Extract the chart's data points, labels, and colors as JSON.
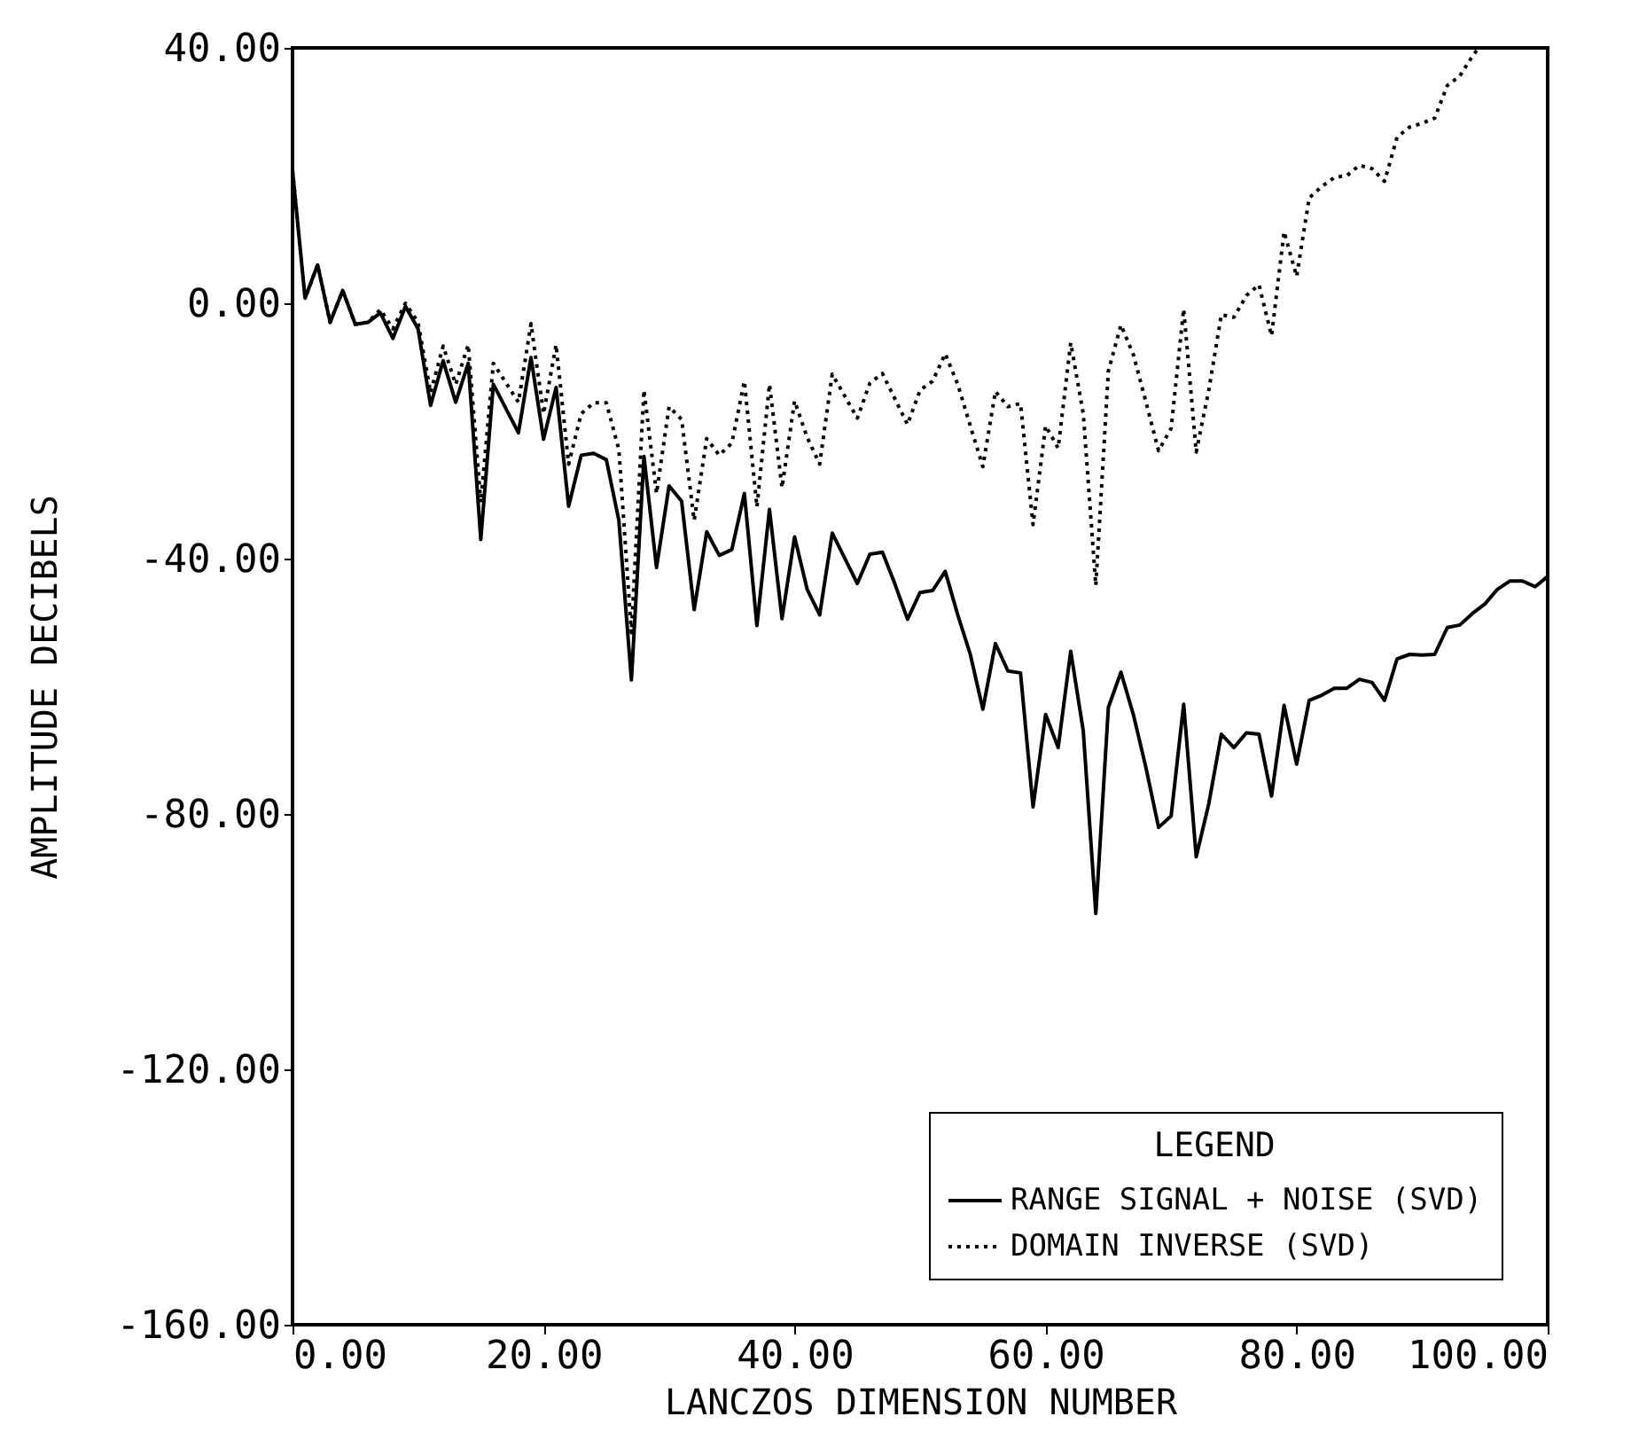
{
  "chart_data": {
    "type": "line",
    "xlabel": "LANCZOS DIMENSION NUMBER",
    "ylabel": "AMPLITUDE DECIBELS",
    "legend_title": "LEGEND",
    "legend": "bottom right",
    "grid": false,
    "xlim": [
      0,
      100
    ],
    "xticks": [
      {
        "value": 0,
        "label": "0.00"
      },
      {
        "value": 20,
        "label": "20.00"
      },
      {
        "value": 40,
        "label": "40.00"
      },
      {
        "value": 60,
        "label": "60.00"
      },
      {
        "value": 80,
        "label": "80.00"
      },
      {
        "value": 100,
        "label": "100.00"
      }
    ],
    "ylim": [
      -160,
      40
    ],
    "yticks": [
      {
        "value": -160,
        "label": "-160.00"
      },
      {
        "value": -120,
        "label": "-120.00"
      },
      {
        "value": -80,
        "label": "-80.00"
      },
      {
        "value": -40,
        "label": "-40.00"
      },
      {
        "value": 0,
        "label": "0.00"
      },
      {
        "value": 40,
        "label": "40.00"
      }
    ],
    "series": [
      {
        "name": "RANGE SIGNAL + NOISE (SVD)",
        "color": "#000000",
        "line_style": "solid",
        "x": [
          0,
          1,
          2,
          3,
          4,
          5,
          6,
          7,
          8,
          9,
          10,
          11,
          12,
          13,
          14,
          15,
          16,
          18,
          19,
          20,
          21,
          22,
          23,
          24,
          25,
          26,
          27,
          28,
          29,
          30,
          31,
          32,
          33,
          34,
          35,
          36,
          37,
          38,
          39,
          40,
          41,
          42,
          43,
          45,
          46,
          47,
          48,
          49,
          50,
          51,
          52,
          53,
          54,
          55,
          56,
          57,
          58,
          59,
          60,
          61,
          62,
          63,
          64,
          65,
          66,
          67,
          68,
          69,
          70,
          71,
          72,
          73,
          74,
          75,
          76,
          77,
          78,
          79,
          80,
          81,
          82,
          83,
          84,
          85,
          86,
          87,
          88,
          89,
          90,
          91,
          92,
          93,
          94,
          95,
          96,
          97,
          98,
          99,
          100
        ],
        "values": [
          20.8,
          0.8,
          6,
          -3,
          2,
          -3.3,
          -3,
          -1.5,
          -5.5,
          -0.5,
          -4,
          -16,
          -9,
          -15.5,
          -9.4,
          -37,
          -12.7,
          -20.3,
          -8.5,
          -21.3,
          -13.2,
          -31.8,
          -23.8,
          -23.5,
          -24.5,
          -34,
          -59,
          -24,
          -41.4,
          -28.6,
          -31,
          -48,
          -35.8,
          -39.5,
          -38.6,
          -29.8,
          -50.5,
          -32.3,
          -49.4,
          -36.6,
          -44.8,
          -48.8,
          -36,
          -43.9,
          -39.3,
          -39,
          -44,
          -49.5,
          -45.3,
          -45,
          -42,
          -48.8,
          -55,
          -63.6,
          -53.3,
          -57.6,
          -57.9,
          -78.9,
          -64.4,
          -69.6,
          -54.5,
          -67,
          -95.6,
          -63.3,
          -57.8,
          -64.5,
          -72.8,
          -82.1,
          -80.3,
          -62.8,
          -86.7,
          -78.4,
          -67.5,
          -69.6,
          -67.3,
          -67.5,
          -77.2,
          -63,
          -72.2,
          -62.2,
          -61.4,
          -60.3,
          -60.3,
          -58.9,
          -59.4,
          -62.2,
          -55.7,
          -55,
          -55.1,
          -55,
          -50.8,
          -50.4,
          -48.6,
          -47.1,
          -44.8,
          -43.5,
          -43.5,
          -44.4,
          -42.8
        ]
      },
      {
        "name": "DOMAIN INVERSE (SVD)",
        "color": "#000000",
        "line_style": "dotted",
        "x": [
          0,
          1,
          2,
          3,
          4,
          5,
          6,
          7,
          8,
          9,
          10,
          11,
          12,
          13,
          14,
          15,
          16,
          18,
          19,
          20,
          21,
          22,
          23,
          24,
          25,
          26,
          27,
          28,
          29,
          30,
          31,
          32,
          33,
          34,
          35,
          36,
          37,
          38,
          39,
          40,
          41,
          42,
          43,
          45,
          46,
          47,
          48,
          49,
          50,
          51,
          52,
          53,
          54,
          55,
          56,
          57,
          58,
          59,
          60,
          61,
          62,
          63,
          64,
          65,
          66,
          67,
          68,
          69,
          70,
          71,
          72,
          73,
          74,
          75,
          76,
          77,
          78,
          79,
          80,
          81,
          82,
          83,
          84,
          85,
          86,
          87,
          88,
          89,
          90,
          91,
          92,
          93,
          94,
          94.5
        ],
        "values": [
          20.8,
          0.8,
          6,
          -3,
          2,
          -3.3,
          -3,
          -1,
          -4,
          0,
          -3,
          -14,
          -6.7,
          -12.7,
          -6.5,
          -31.2,
          -9.4,
          -15.5,
          -3.2,
          -17.3,
          -6.5,
          -25.2,
          -17.3,
          -15.6,
          -15.6,
          -22.9,
          -51.6,
          -13.6,
          -29.8,
          -16.2,
          -18.2,
          -34,
          -21.2,
          -23.8,
          -21.9,
          -12.2,
          -31.9,
          -12.7,
          -28.9,
          -15.3,
          -21,
          -25.2,
          -11.1,
          -18,
          -12.5,
          -11,
          -15,
          -19,
          -13.6,
          -12.2,
          -7.9,
          -12.7,
          -19.2,
          -25.6,
          -13.8,
          -16.2,
          -15.7,
          -34.7,
          -19.2,
          -22.7,
          -6.2,
          -17.3,
          -44.2,
          -10.6,
          -3.4,
          -8.1,
          -15.5,
          -23.1,
          -19.6,
          -0.9,
          -23.3,
          -13.6,
          -1.8,
          -2.2,
          1.2,
          2.9,
          -5.1,
          11.2,
          4.2,
          16.5,
          18.3,
          19.7,
          20,
          21.6,
          21.1,
          19.1,
          26,
          27.6,
          28.2,
          29,
          34.1,
          35.6,
          38.7,
          40
        ]
      }
    ]
  }
}
